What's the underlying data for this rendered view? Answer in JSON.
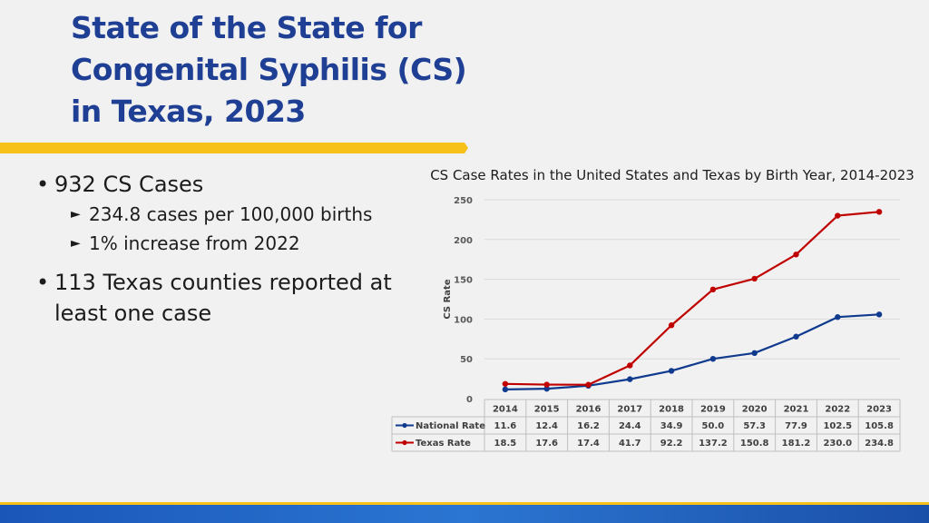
{
  "slide": {
    "title_lines": [
      "State of the State for",
      "Congenital Syphilis (CS)",
      "in Texas, 2023"
    ],
    "bullets": [
      {
        "text": "932 CS Cases",
        "subs": [
          "234.8 cases per 100,000 births",
          "1% increase from 2022"
        ]
      },
      {
        "text": "113 Texas counties reported at least one case",
        "subs": []
      }
    ],
    "colors": {
      "title": "#1f3f94",
      "accent": "#f7c11a",
      "footer": "#2b76d2"
    }
  },
  "chart_data": {
    "type": "line",
    "title": "CS Case Rates in the United States and Texas by Birth Year, 2014-2023",
    "xlabel": "",
    "ylabel": "CS Rate",
    "ylim": [
      0,
      250
    ],
    "yticks": [
      0,
      50,
      100,
      150,
      200,
      250
    ],
    "grid": true,
    "legend": "data-table",
    "categories": [
      "2014",
      "2015",
      "2016",
      "2017",
      "2018",
      "2019",
      "2020",
      "2021",
      "2022",
      "2023"
    ],
    "series": [
      {
        "name": "National Rate",
        "color": "#0f3a8e",
        "values": [
          11.6,
          12.4,
          16.2,
          24.4,
          34.9,
          50.0,
          57.3,
          77.9,
          102.5,
          105.8
        ],
        "labels": [
          "11.6",
          "12.4",
          "16.2",
          "24.4",
          "34.9",
          "50.0",
          "57.3",
          "77.9",
          "102.5",
          "105.8"
        ]
      },
      {
        "name": "Texas Rate",
        "color": "#c00000",
        "values": [
          18.5,
          17.6,
          17.4,
          41.7,
          92.2,
          137.2,
          150.8,
          181.2,
          230.0,
          234.8
        ],
        "labels": [
          "18.5",
          "17.6",
          "17.4",
          "41.7",
          "92.2",
          "137.2",
          "150.8",
          "181.2",
          "230.0",
          "234.8"
        ]
      }
    ]
  }
}
